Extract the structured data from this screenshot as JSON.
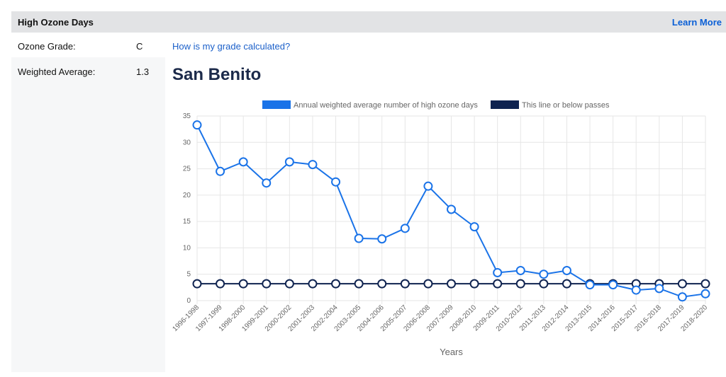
{
  "header": {
    "title": "High Ozone Days",
    "learn_more": "Learn More"
  },
  "grade": {
    "label": "Ozone Grade:",
    "value": "C",
    "link": "How is my grade calculated?"
  },
  "weighted": {
    "label": "Weighted Average:",
    "value": "1.3"
  },
  "chart_title": "San Benito",
  "colors": {
    "series": "#1a73e8",
    "threshold": "#0f2350"
  },
  "chart_data": {
    "type": "line",
    "title": "San Benito",
    "xlabel": "Years",
    "ylabel": "",
    "ylim": [
      0,
      35
    ],
    "yticks": [
      0,
      5,
      10,
      15,
      20,
      25,
      30,
      35
    ],
    "grid": true,
    "legend_position": "top",
    "categories": [
      "1996-1998",
      "1997-1999",
      "1998-2000",
      "1999-2001",
      "2000-2002",
      "2001-2003",
      "2002-2004",
      "2003-2005",
      "2004-2006",
      "2005-2007",
      "2006-2008",
      "2007-2009",
      "2008-2010",
      "2009-2011",
      "2010-2012",
      "2011-2013",
      "2012-2014",
      "2013-2015",
      "2014-2016",
      "2015-2017",
      "2016-2018",
      "2017-2019",
      "2018-2020"
    ],
    "series": [
      {
        "name": "Annual weighted average number of high ozone days",
        "color": "#1a73e8",
        "values": [
          33.3,
          24.5,
          26.3,
          22.3,
          26.3,
          25.8,
          22.5,
          11.8,
          11.7,
          13.7,
          21.7,
          17.3,
          14.0,
          5.3,
          5.7,
          5.0,
          5.7,
          3.0,
          3.0,
          2.0,
          2.3,
          0.7,
          1.3
        ]
      },
      {
        "name": "This line or below passes",
        "color": "#0f2350",
        "values": [
          3.2,
          3.2,
          3.2,
          3.2,
          3.2,
          3.2,
          3.2,
          3.2,
          3.2,
          3.2,
          3.2,
          3.2,
          3.2,
          3.2,
          3.2,
          3.2,
          3.2,
          3.2,
          3.2,
          3.2,
          3.2,
          3.2,
          3.2
        ]
      }
    ]
  }
}
